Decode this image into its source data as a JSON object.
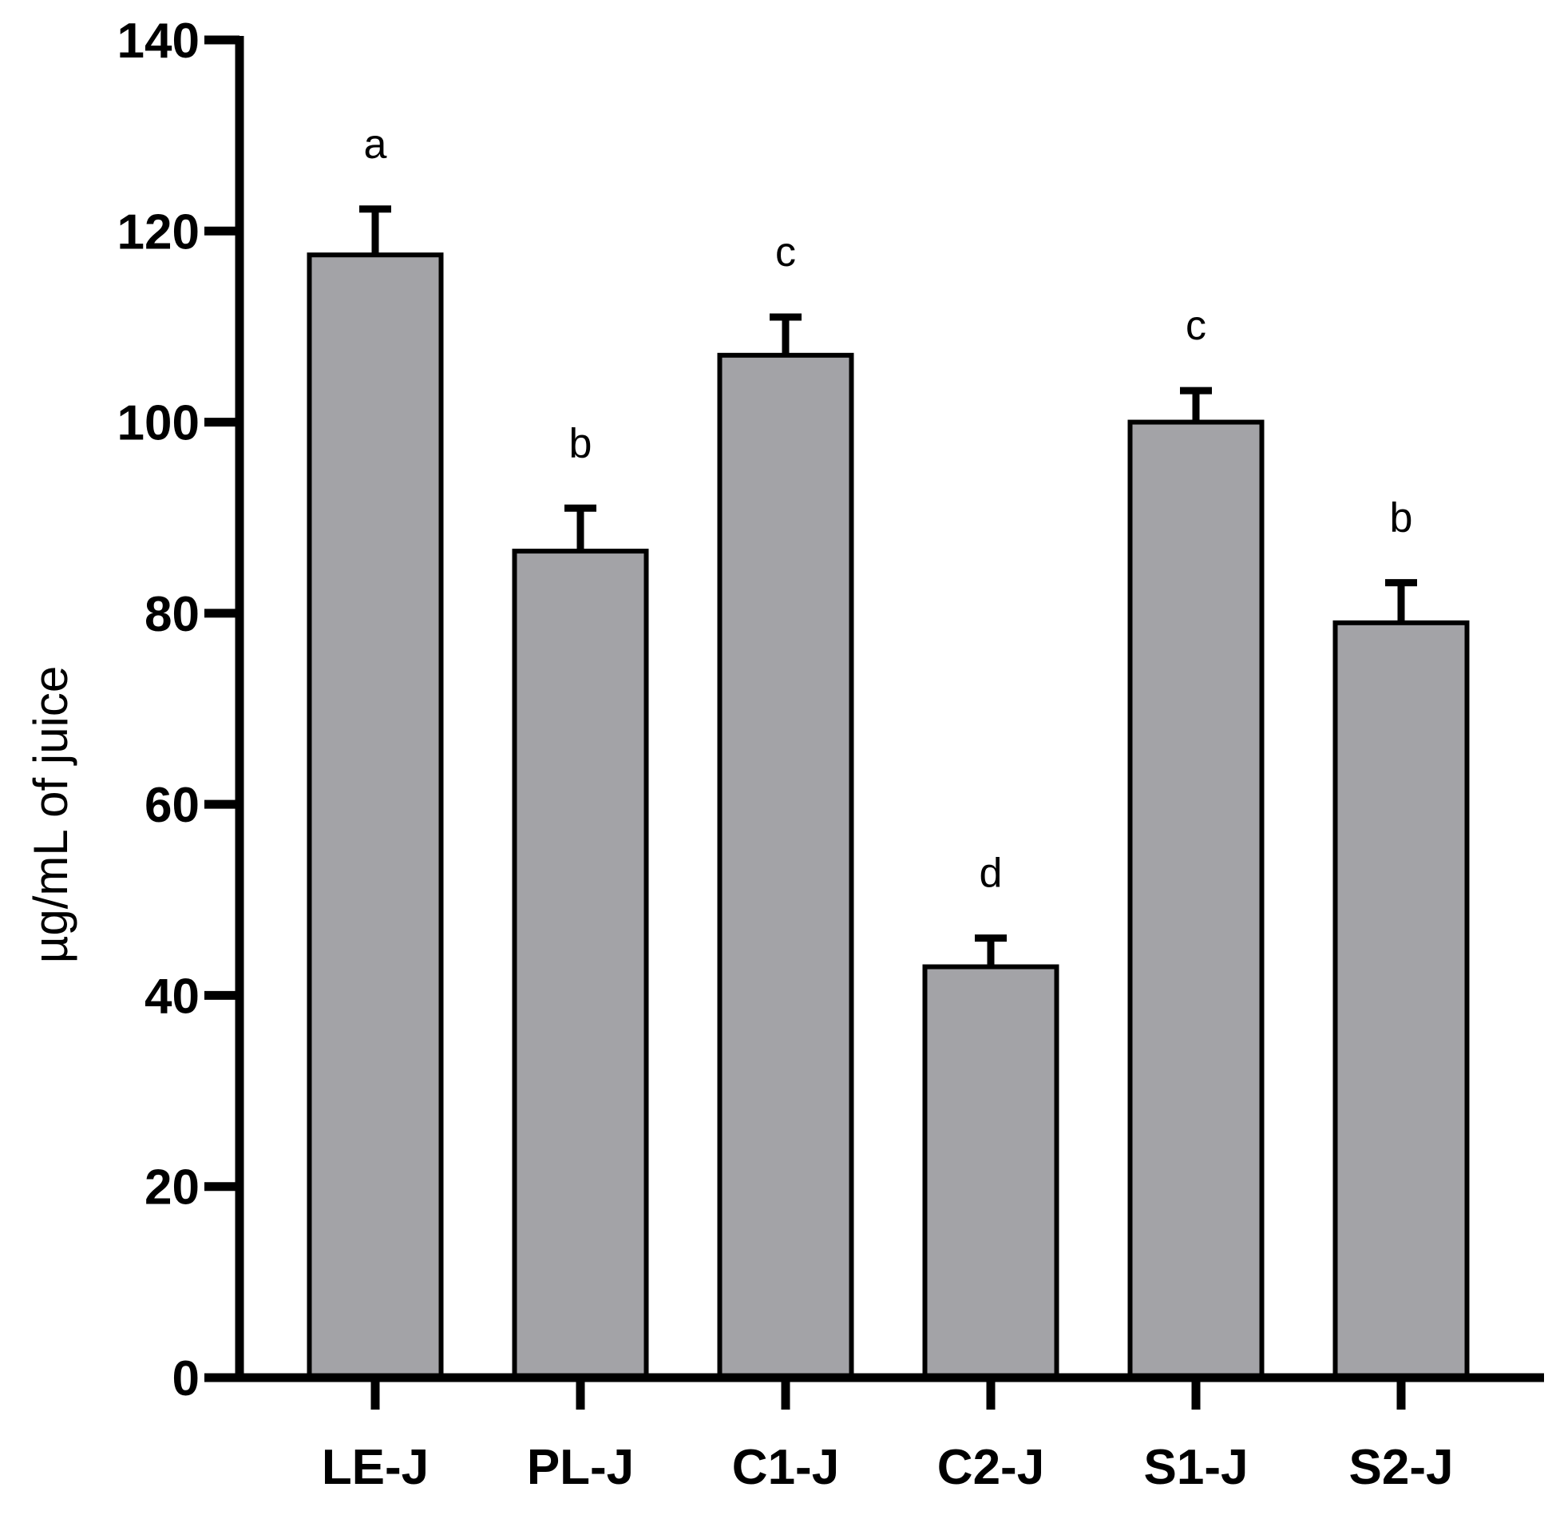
{
  "chart_data": {
    "type": "bar",
    "title": "",
    "xlabel": "",
    "ylabel": "µg/mL of juice",
    "ylim": [
      0,
      140
    ],
    "yticks": [
      0,
      20,
      40,
      60,
      80,
      100,
      120,
      140
    ],
    "categories": [
      "LE-J",
      "PL-J",
      "C1-J",
      "C2-J",
      "S1-J",
      "S2-J"
    ],
    "values": [
      117.5,
      86.5,
      107,
      43,
      100,
      79
    ],
    "errors": [
      4.8,
      4.5,
      4,
      3,
      3.3,
      4.2
    ],
    "significance_labels": [
      "a",
      "b",
      "c",
      "d",
      "c",
      "b"
    ],
    "grid": false,
    "bar_color": "#a3a3a7",
    "edge_color": "#000000"
  }
}
